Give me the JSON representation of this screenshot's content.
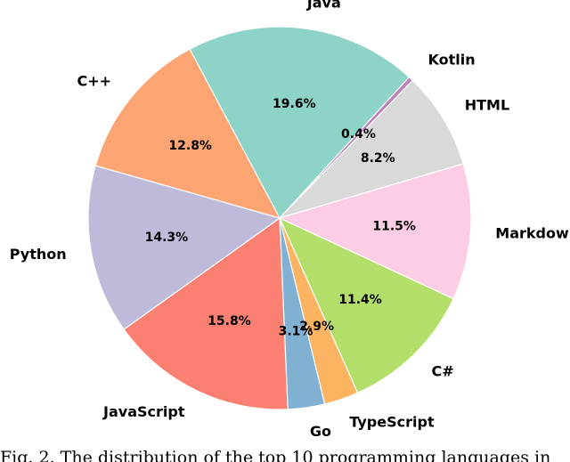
{
  "chart_data": {
    "type": "pie",
    "title": "",
    "start_angle_deg": 118,
    "direction": "clockwise",
    "slices": [
      {
        "label": "Java",
        "value": 19.6,
        "pct_label": "19.6%",
        "color": "#8dd3c7"
      },
      {
        "label": "Kotlin",
        "value": 0.4,
        "pct_label": "0.4%",
        "color": "#bc80bd"
      },
      {
        "label": "HTML",
        "value": 8.2,
        "pct_label": "8.2%",
        "color": "#d9d9d9"
      },
      {
        "label": "Markdown",
        "value": 11.5,
        "pct_label": "11.5%",
        "color": "#fccde5"
      },
      {
        "label": "C#",
        "value": 11.4,
        "pct_label": "11.4%",
        "color": "#b3de69"
      },
      {
        "label": "TypeScript",
        "value": 2.9,
        "pct_label": "2.9%",
        "color": "#fdb462"
      },
      {
        "label": "Go",
        "value": 3.1,
        "pct_label": "3.1%",
        "color": "#80b1d3"
      },
      {
        "label": "JavaScript",
        "value": 15.8,
        "pct_label": "15.8%",
        "color": "#fb8072"
      },
      {
        "label": "Python",
        "value": 14.3,
        "pct_label": "14.3%",
        "color": "#bebada"
      },
      {
        "label": "C++",
        "value": 12.8,
        "pct_label": "12.8%",
        "color": "#fca572"
      }
    ]
  },
  "caption": "Fig. 2. The distribution of the top 10 programming languages in"
}
